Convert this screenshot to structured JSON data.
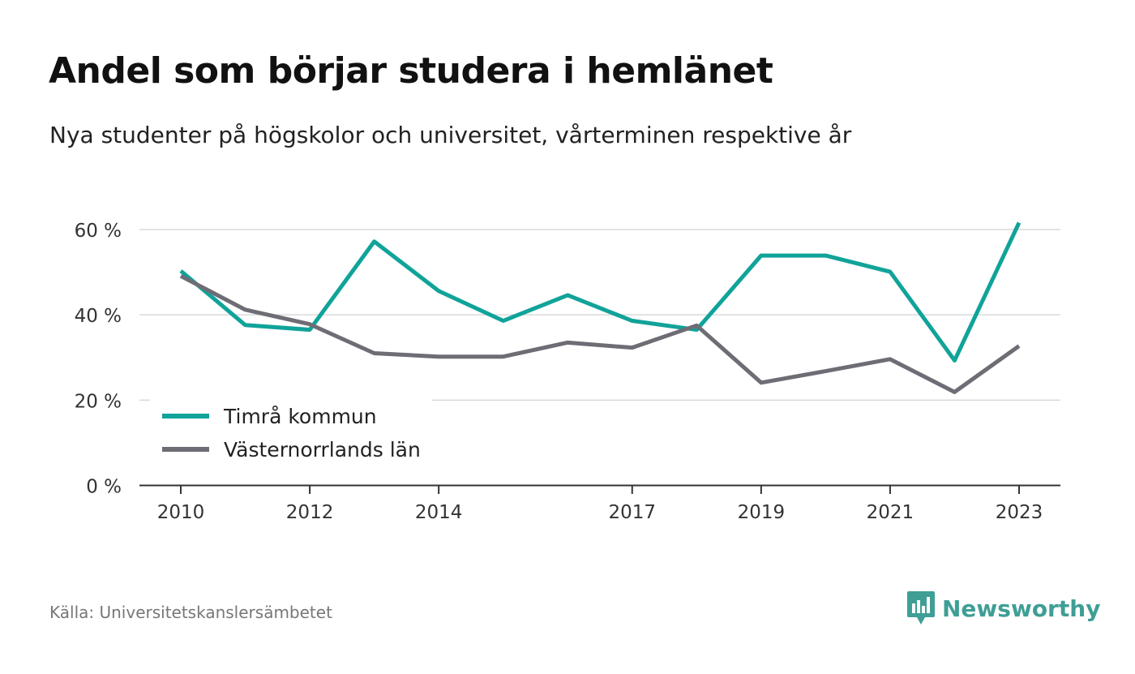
{
  "title": "Andel som börjar studera i hemlänet",
  "subtitle": "Nya studenter på högskolor och universitet, vårterminen respektive år",
  "source": "Källa: Universitetskanslersämbetet",
  "brand": {
    "name": "Newsworthy",
    "icon": "newsworthy-logo-icon",
    "color": "#3f9e95"
  },
  "chart_data": {
    "type": "line",
    "x": [
      2010,
      2011,
      2012,
      2013,
      2014,
      2015,
      2016,
      2017,
      2018,
      2019,
      2020,
      2021,
      2022,
      2023
    ],
    "x_tick_labels": [
      "2010",
      "2012",
      "2014",
      "2017",
      "2019",
      "2021",
      "2023"
    ],
    "y_ticks": [
      0,
      20,
      40,
      60
    ],
    "y_tick_labels": [
      "0 %",
      "20 %",
      "40 %",
      "60 %"
    ],
    "ylim": [
      0,
      65
    ],
    "grid": true,
    "legend_position": "bottom-left",
    "series": [
      {
        "name": "Timrå kommun",
        "color": "#10a399",
        "values": [
          50.3,
          37.6,
          36.5,
          57.2,
          45.6,
          38.6,
          44.6,
          38.6,
          36.5,
          53.9,
          53.9,
          50.1,
          29.3,
          61.6
        ]
      },
      {
        "name": "Västernorrlands län",
        "color": "#6e6c74",
        "values": [
          49.1,
          41.2,
          37.8,
          31.0,
          30.2,
          30.2,
          33.5,
          32.3,
          37.5,
          24.1,
          26.8,
          29.6,
          21.9,
          32.7
        ]
      }
    ]
  }
}
